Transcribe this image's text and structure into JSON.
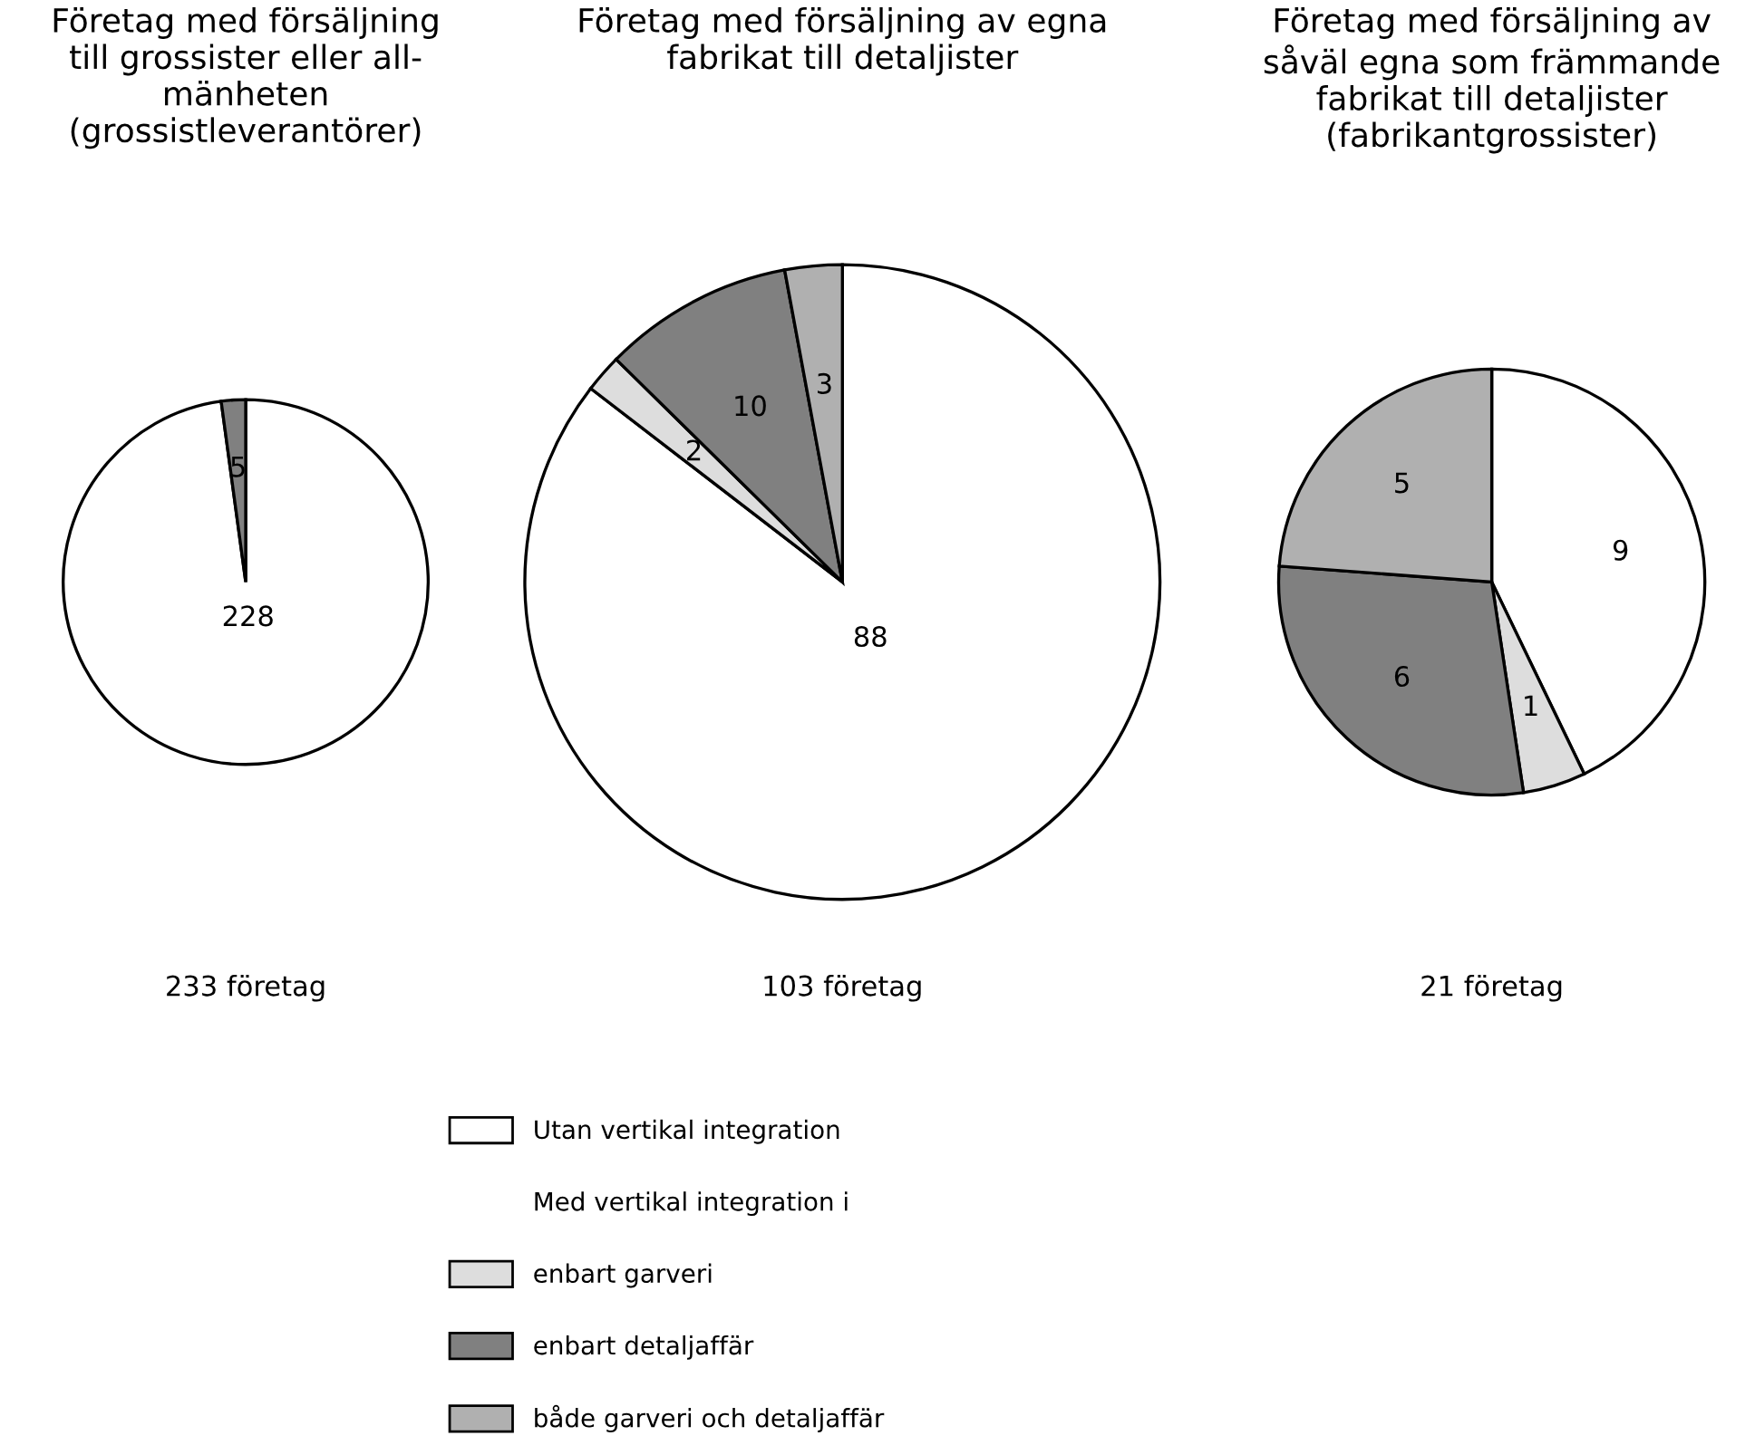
{
  "chart_data": [
    {
      "type": "pie",
      "title": "Företag med försäljning\ntill grossister eller all-\nmänheten\n(grossistleverantörer)",
      "categories": [
        null,
        null
      ],
      "values": [
        228,
        5
      ],
      "colors": [
        "#ffffff",
        "#808080"
      ],
      "data_labels": true,
      "annotations": [
        "233 företag"
      ]
    },
    {
      "type": "pie",
      "title": "Företag med försäljning av egna\nfabrikat till detaljister",
      "categories": [
        "Utan vertikal integration",
        "enbart garveri",
        "enbart detaljaffär",
        "både garveri och detaljaffär"
      ],
      "values": [
        88,
        2,
        10,
        3
      ],
      "colors": [
        "#ffffff",
        "#dddddd",
        "#808080",
        "#b0b0b0"
      ],
      "data_labels": true,
      "annotations": [
        "103 företag"
      ],
      "legend": "bottom",
      "legend_title": "Med vertikal integration i"
    },
    {
      "type": "pie",
      "title": "Företag med försäljning av\nsåväl egna som främmande\nfabrikat till detaljister\n(fabrikantgrossister)",
      "categories": [
        null,
        null,
        null,
        null
      ],
      "values": [
        9,
        1,
        6,
        5
      ],
      "colors": [
        "#ffffff",
        "#dddddd",
        "#808080",
        "#b0b0b0"
      ],
      "data_labels": true,
      "annotations": [
        "21 företag"
      ]
    }
  ]
}
